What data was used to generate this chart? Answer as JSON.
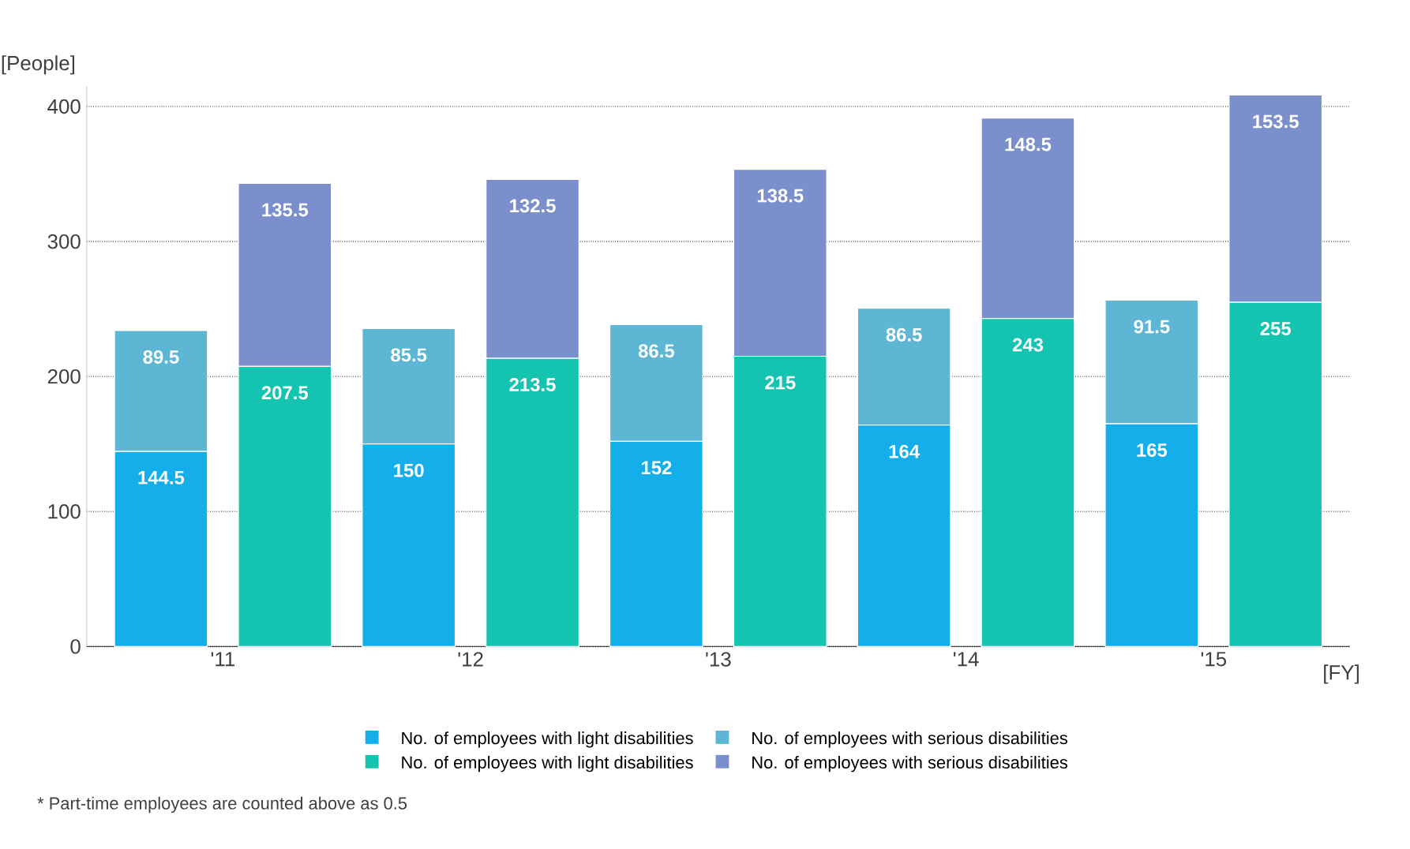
{
  "chart_data": {
    "type": "bar",
    "stacked": true,
    "ylabel": "[People]",
    "xlabel": "[FY]",
    "categories": [
      "'11",
      null,
      "'12",
      null,
      "'13",
      null,
      "'14",
      null,
      "'15",
      null
    ],
    "series": [
      {
        "name": "No. of employees with light disabilities",
        "color": "#14aeea",
        "values": [
          144.5,
          null,
          150,
          null,
          152,
          null,
          164,
          null,
          165,
          null
        ]
      },
      {
        "name": "No. of employees with serious disabilities",
        "color": "#5cb6d4",
        "values": [
          89.5,
          null,
          85.5,
          null,
          86.5,
          null,
          86.5,
          null,
          91.5,
          null
        ]
      },
      {
        "name": "No. of employees with light disabilities",
        "color": "#14c4b0",
        "values": [
          null,
          207.5,
          null,
          213.5,
          null,
          215,
          null,
          243,
          null,
          255
        ]
      },
      {
        "name": "No. of employees with serious disabilities",
        "color": "#7b8fcc",
        "values": [
          null,
          135.5,
          null,
          132.5,
          null,
          138.5,
          null,
          148.5,
          null,
          153.5
        ]
      }
    ],
    "ylim": [
      0,
      415
    ],
    "yticks": [
      0,
      100,
      200,
      300,
      400
    ],
    "grid": "y",
    "legend": "bottom",
    "data_labels": true,
    "annotations": [
      "* Part-time employees are counted above as 0.5"
    ]
  }
}
